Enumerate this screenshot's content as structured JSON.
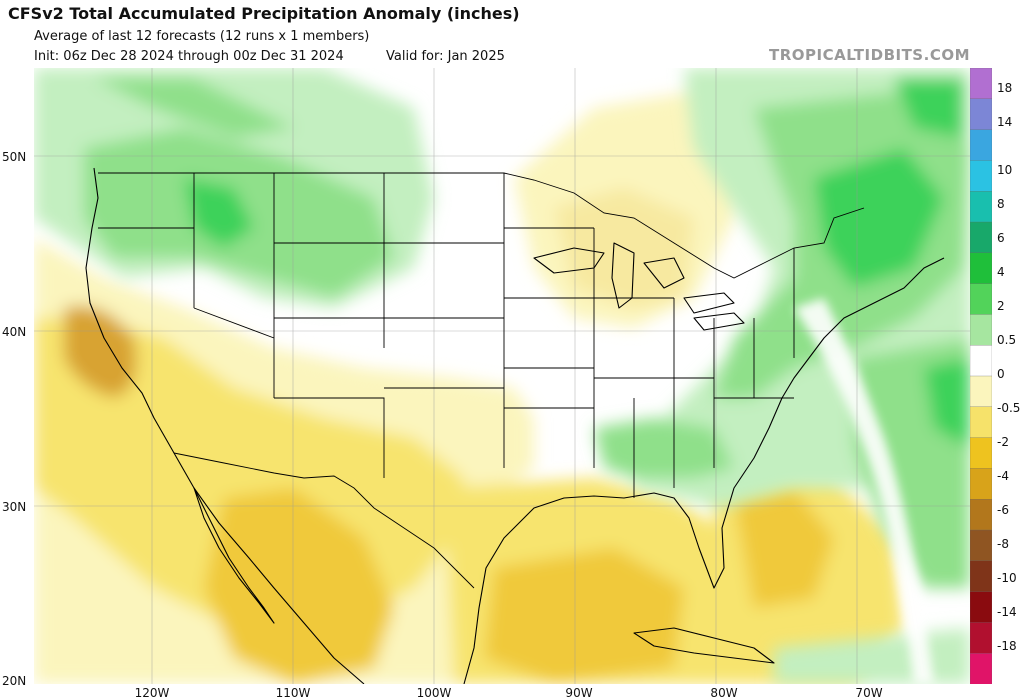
{
  "header": {
    "title": "CFSv2 Total Accumulated Precipitation Anomaly (inches)",
    "subtitle": "Average of last 12 forecasts (12 runs x 1 members)",
    "init": "Init: 06z Dec 28 2024 through 00z Dec 31 2024",
    "valid": "Valid for: Jan 2025",
    "brand": "TROPICALTIDBITS.COM"
  },
  "axes": {
    "lat_labels": [
      "50N",
      "40N",
      "30N",
      "20N"
    ],
    "lon_labels": [
      "120W",
      "110W",
      "100W",
      "90W",
      "80W",
      "70W"
    ]
  },
  "colorbar": {
    "labels": [
      "18",
      "14",
      "10",
      "8",
      "6",
      "4",
      "2",
      "0.5",
      "0",
      "-0.5",
      "-2",
      "-4",
      "-6",
      "-8",
      "-10",
      "-14",
      "-18"
    ],
    "colors": [
      "#b16fd1",
      "#7c86d6",
      "#3aa6e0",
      "#2bc2e3",
      "#19bfae",
      "#18a86a",
      "#1fbf3a",
      "#52d35a",
      "#a6e6a0",
      "#ffffff",
      "#fbf5bd",
      "#f6e26a",
      "#eec31f",
      "#d8a31a",
      "#b2771c",
      "#8f5522",
      "#7f3419",
      "#8a0b0f",
      "#b1102f",
      "#e01468"
    ]
  },
  "map": {
    "colors": {
      "dry_light": "#fbf5bd",
      "dry_mid": "#f7e46e",
      "dry_strong": "#f0c93b",
      "dry_max": "#d8a331",
      "wet_light": "#c3efc0",
      "wet_mid": "#8fe08a",
      "wet_strong": "#3cd25a",
      "wet_max": "#1fbf3a",
      "lines": "#000000",
      "graticule": "#9a9a9a"
    }
  }
}
